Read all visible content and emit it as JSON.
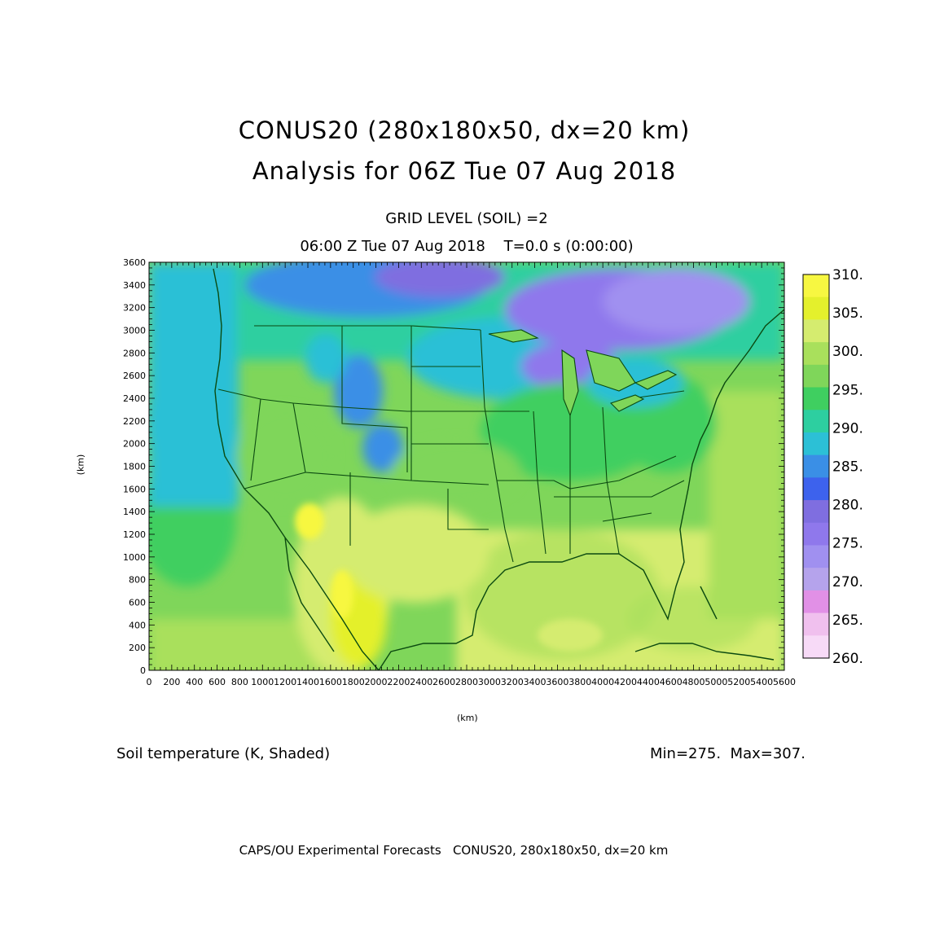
{
  "header": {
    "title_line1": "CONUS20 (280x180x50, dx=20 km)",
    "title_line2": "Analysis for 06Z Tue 07 Aug 2018",
    "level": "GRID LEVEL (SOIL) =2",
    "time": "06:00 Z Tue 07 Aug 2018    T=0.0 s (0:00:00)"
  },
  "axes": {
    "x_unit": "(km)",
    "y_unit": "(km)",
    "x_ticks": [
      "0",
      "200",
      "400",
      "600",
      "800",
      "1000",
      "1200",
      "1400",
      "1600",
      "1800",
      "2000",
      "2200",
      "2400",
      "2600",
      "2800",
      "3000",
      "3200",
      "3400",
      "3600",
      "3800",
      "4000",
      "4200",
      "4400",
      "4600",
      "4800",
      "5000",
      "5200",
      "5400",
      "5600"
    ],
    "y_ticks": [
      "0",
      "200",
      "400",
      "600",
      "800",
      "1000",
      "1200",
      "1400",
      "1600",
      "1800",
      "2000",
      "2200",
      "2400",
      "2600",
      "2800",
      "3000",
      "3200",
      "3400",
      "3600"
    ],
    "x_range": [
      0,
      5600
    ],
    "y_range": [
      0,
      3600
    ]
  },
  "colorbar": {
    "labels": [
      "310.",
      "305.",
      "300.",
      "295.",
      "290.",
      "285.",
      "280.",
      "275.",
      "270.",
      "265.",
      "260."
    ],
    "colors": [
      "#f7f741",
      "#e4f02c",
      "#d5ec6f",
      "#a9e05c",
      "#7fd65a",
      "#3fcf60",
      "#2dcfa0",
      "#2cc0d6",
      "#3a8fe6",
      "#3d62ed",
      "#7f6ee0",
      "#8f78ec",
      "#a090f0",
      "#b5a3ec",
      "#e190e6",
      "#f0c0ee",
      "#f7daf7"
    ]
  },
  "field": {
    "variable": "Soil temperature (K, Shaded)",
    "minmax": "Min=275.  Max=307."
  },
  "footer": "CAPS/OU Experimental Forecasts   CONUS20, 280x180x50, dx=20 km"
}
